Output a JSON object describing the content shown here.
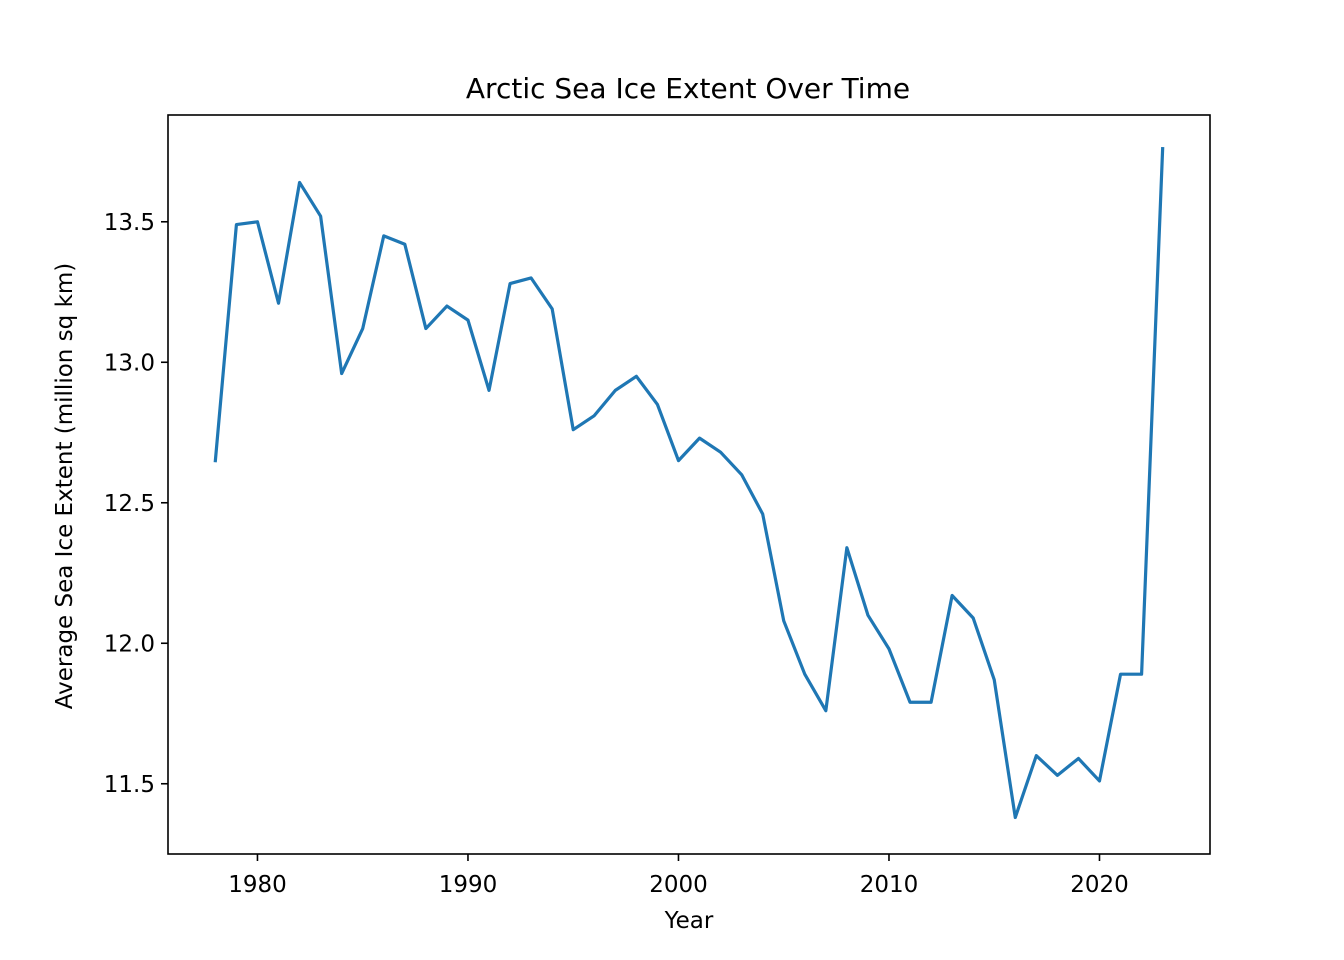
{
  "chart_data": {
    "type": "line",
    "title": "Arctic Sea Ice Extent Over Time",
    "xlabel": "Year",
    "ylabel": "Average Sea Ice Extent (million sq km)",
    "xlim": [
      1975.75,
      2025.25
    ],
    "ylim": [
      11.25,
      13.88
    ],
    "xticks": [
      1980,
      1990,
      2000,
      2010,
      2020
    ],
    "yticks": [
      "11.5",
      "12.0",
      "12.5",
      "13.0",
      "13.5"
    ],
    "grid": false,
    "series": [
      {
        "name": "Sea Ice Extent",
        "color": "#1f77b4",
        "x": [
          1978,
          1979,
          1980,
          1981,
          1982,
          1983,
          1984,
          1985,
          1986,
          1987,
          1988,
          1989,
          1990,
          1991,
          1992,
          1993,
          1994,
          1995,
          1996,
          1997,
          1998,
          1999,
          2000,
          2001,
          2002,
          2003,
          2004,
          2005,
          2006,
          2007,
          2008,
          2009,
          2010,
          2011,
          2012,
          2013,
          2014,
          2015,
          2016,
          2017,
          2018,
          2019,
          2020,
          2021,
          2022,
          2023
        ],
        "values": [
          12.65,
          13.49,
          13.5,
          13.21,
          13.64,
          13.52,
          12.96,
          13.12,
          13.45,
          13.42,
          13.12,
          13.2,
          13.15,
          12.9,
          13.28,
          13.3,
          13.19,
          12.76,
          12.81,
          12.9,
          12.95,
          12.85,
          12.65,
          12.73,
          12.68,
          12.6,
          12.46,
          12.08,
          11.89,
          11.76,
          12.34,
          12.1,
          11.98,
          11.79,
          11.79,
          12.17,
          12.09,
          11.87,
          11.38,
          11.6,
          11.53,
          11.59,
          11.51,
          11.89,
          11.89,
          13.76
        ]
      }
    ]
  }
}
